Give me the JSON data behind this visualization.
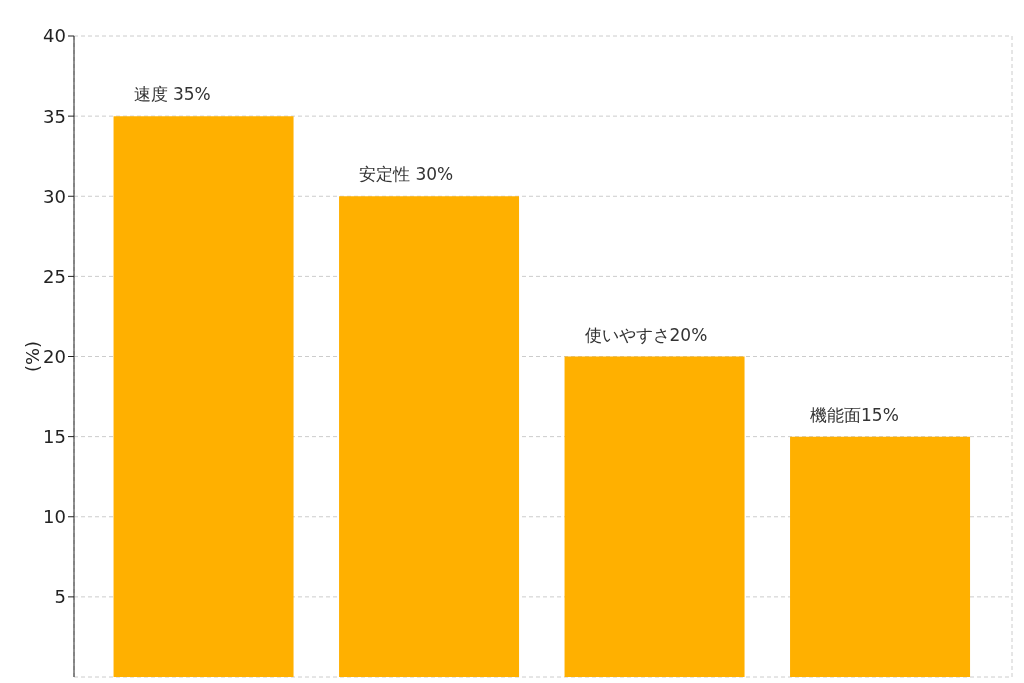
{
  "chart_data": {
    "type": "bar",
    "ylabel": "(%)",
    "categories": [
      null,
      null,
      null,
      null
    ],
    "values": [
      35,
      30,
      20,
      15
    ],
    "value_labels": [
      "速度 35%",
      "安定性 30%",
      "使いやすさ20%",
      "機能面15%"
    ],
    "color": "#ffb000",
    "ylim": [
      0,
      40
    ],
    "yticks": [
      5,
      10,
      15,
      20,
      25,
      30,
      35,
      40
    ],
    "grid": true,
    "tick_labels": "y",
    "legend": false
  }
}
